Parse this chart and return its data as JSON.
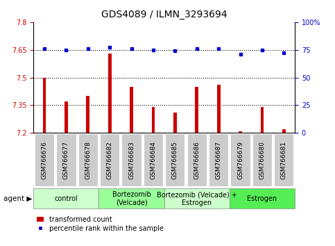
{
  "title": "GDS4089 / ILMN_3293694",
  "samples": [
    "GSM766676",
    "GSM766677",
    "GSM766678",
    "GSM766682",
    "GSM766683",
    "GSM766684",
    "GSM766685",
    "GSM766686",
    "GSM766687",
    "GSM766679",
    "GSM766680",
    "GSM766681"
  ],
  "transformed_counts": [
    7.5,
    7.37,
    7.4,
    7.63,
    7.45,
    7.34,
    7.31,
    7.45,
    7.46,
    7.21,
    7.34,
    7.22
  ],
  "percentile_ranks": [
    76,
    75,
    76,
    77,
    76,
    75,
    74,
    76,
    76,
    71,
    75,
    72
  ],
  "ylim_left": [
    7.2,
    7.8
  ],
  "ylim_right": [
    0,
    100
  ],
  "yticks_left": [
    7.2,
    7.35,
    7.5,
    7.65,
    7.8
  ],
  "yticks_right": [
    0,
    25,
    50,
    75,
    100
  ],
  "ytick_labels_right": [
    "0",
    "25",
    "50",
    "75",
    "100%"
  ],
  "hlines": [
    7.35,
    7.5,
    7.65
  ],
  "bar_color": "#cc0000",
  "dot_color": "#0000cc",
  "bar_baseline": 7.2,
  "bar_width": 0.15,
  "groups": [
    {
      "label": "control",
      "start": 0,
      "end": 3,
      "color": "#ccffcc"
    },
    {
      "label": "Bortezomib\n(Velcade)",
      "start": 3,
      "end": 6,
      "color": "#99ff99"
    },
    {
      "label": "Bortezomib (Velcade) +\nEstrogen",
      "start": 6,
      "end": 9,
      "color": "#ccffcc"
    },
    {
      "label": "Estrogen",
      "start": 9,
      "end": 12,
      "color": "#55ee55"
    }
  ],
  "agent_label": "agent",
  "legend_bar_label": "transformed count",
  "legend_dot_label": "percentile rank within the sample",
  "title_fontsize": 10,
  "tick_fontsize": 7,
  "label_fontsize": 7.5,
  "group_fontsize": 7,
  "sample_fontsize": 6.5,
  "tick_color_left": "#cc0000",
  "tick_color_right": "#0000cc",
  "sample_box_color": "#cccccc",
  "group_border_color": "#888888"
}
